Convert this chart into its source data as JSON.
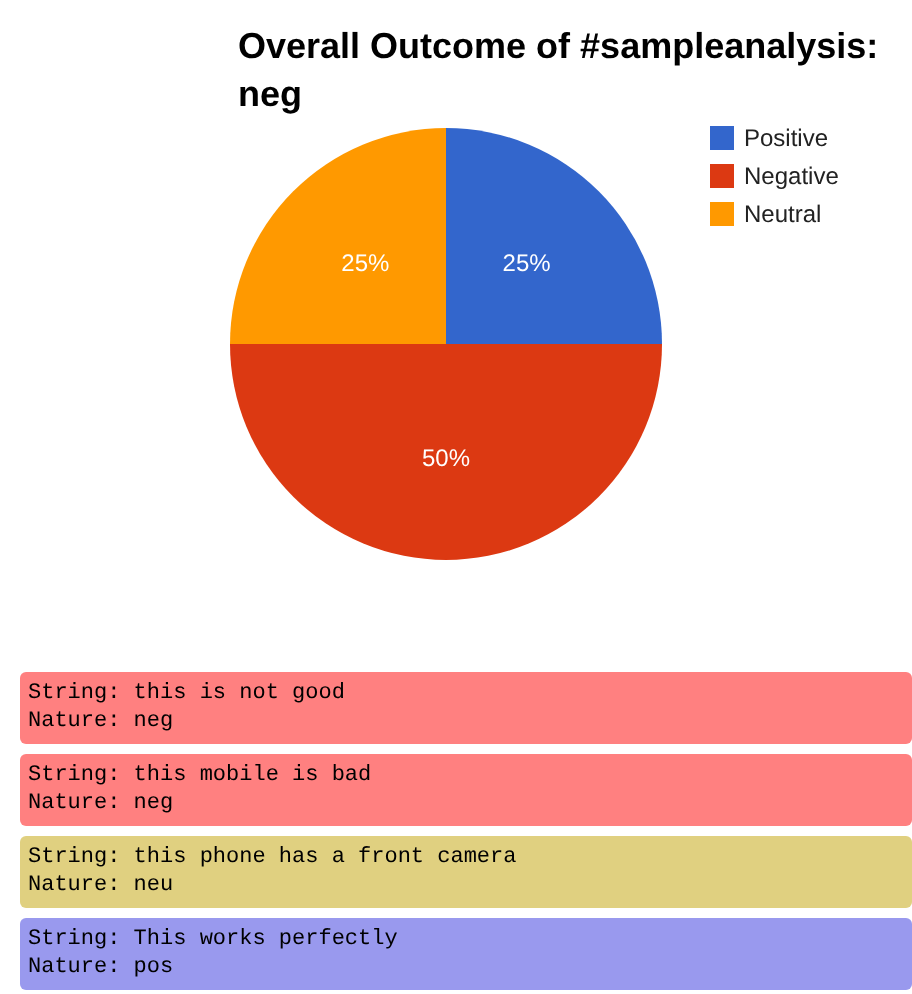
{
  "chart_data": [
    {
      "type": "pie",
      "title": "Overall Outcome of #sampleanalysis: neg",
      "categories": [
        "Positive",
        "Negative",
        "Neutral"
      ],
      "values": [
        25,
        50,
        25
      ],
      "colors": [
        "#3366cc",
        "#dc3912",
        "#ff9900"
      ],
      "legend": "top right",
      "value_labels": [
        "25%",
        "50%",
        "25%"
      ]
    },
    {
      "type": "other",
      "annotations": [
        "String: this is not good\nNature: neg",
        "String: this mobile is bad\nNature: neg",
        "String: this phone has a front camera\nNature: neu",
        "String: This works perfectly\nNature: pos"
      ],
      "colors": [
        "#ff8080",
        "#ff8080",
        "#e0d080",
        "#9999ee"
      ]
    }
  ]
}
